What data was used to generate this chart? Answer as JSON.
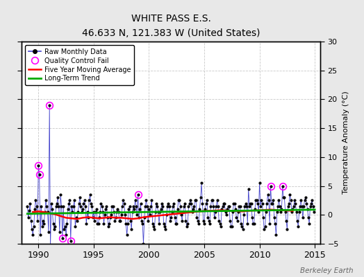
{
  "title": "WHITE PASS E.S.",
  "subtitle": "46.633 N, 121.383 W (United States)",
  "ylabel_right": "Temperature Anomaly (°C)",
  "watermark": "Berkeley Earth",
  "xlim": [
    1988.5,
    2015.5
  ],
  "ylim": [
    -5,
    30
  ],
  "yticks": [
    -5,
    0,
    5,
    10,
    15,
    20,
    25,
    30
  ],
  "xticks": [
    1990,
    1995,
    2000,
    2005,
    2010,
    2015
  ],
  "bg_color": "#e8e8e8",
  "plot_bg": "#ffffff",
  "raw_line_color": "#4444cc",
  "raw_marker_color": "#000000",
  "qc_fail_color": "#ff00ff",
  "moving_avg_color": "#ff0000",
  "trend_color": "#00aa00",
  "raw_data": [
    [
      1989.0,
      1.5
    ],
    [
      1989.083,
      -0.5
    ],
    [
      1989.167,
      0.8
    ],
    [
      1989.25,
      2.0
    ],
    [
      1989.333,
      -1.0
    ],
    [
      1989.417,
      -2.5
    ],
    [
      1989.5,
      -3.5
    ],
    [
      1989.583,
      -2.0
    ],
    [
      1989.667,
      1.0
    ],
    [
      1989.75,
      2.5
    ],
    [
      1989.833,
      1.5
    ],
    [
      1989.917,
      -1.0
    ],
    [
      1990.0,
      8.5
    ],
    [
      1990.083,
      7.0
    ],
    [
      1990.167,
      -3.5
    ],
    [
      1990.25,
      1.5
    ],
    [
      1990.333,
      -2.0
    ],
    [
      1990.417,
      -1.0
    ],
    [
      1990.5,
      -1.5
    ],
    [
      1990.583,
      0.5
    ],
    [
      1990.667,
      2.5
    ],
    [
      1990.75,
      1.5
    ],
    [
      1990.833,
      0.5
    ],
    [
      1990.917,
      -3.0
    ],
    [
      1991.0,
      19.0
    ],
    [
      1991.083,
      -5.5
    ],
    [
      1991.167,
      2.0
    ],
    [
      1991.25,
      1.0
    ],
    [
      1991.333,
      -1.5
    ],
    [
      1991.417,
      -2.5
    ],
    [
      1991.5,
      -2.0
    ],
    [
      1991.583,
      1.5
    ],
    [
      1991.667,
      2.0
    ],
    [
      1991.75,
      3.0
    ],
    [
      1991.833,
      1.5
    ],
    [
      1991.917,
      -3.0
    ],
    [
      1992.0,
      3.5
    ],
    [
      1992.083,
      1.5
    ],
    [
      1992.167,
      -4.0
    ],
    [
      1992.25,
      1.5
    ],
    [
      1992.333,
      -2.5
    ],
    [
      1992.417,
      -2.0
    ],
    [
      1992.5,
      -3.5
    ],
    [
      1992.583,
      -1.5
    ],
    [
      1992.667,
      1.0
    ],
    [
      1992.75,
      2.0
    ],
    [
      1992.833,
      2.5
    ],
    [
      1992.917,
      -4.5
    ],
    [
      1993.0,
      1.5
    ],
    [
      1993.083,
      0.5
    ],
    [
      1993.167,
      1.5
    ],
    [
      1993.25,
      2.5
    ],
    [
      1993.333,
      -2.0
    ],
    [
      1993.417,
      -0.5
    ],
    [
      1993.5,
      -1.0
    ],
    [
      1993.583,
      0.5
    ],
    [
      1993.667,
      2.0
    ],
    [
      1993.75,
      3.0
    ],
    [
      1993.833,
      1.5
    ],
    [
      1993.917,
      0.5
    ],
    [
      1994.0,
      1.0
    ],
    [
      1994.083,
      2.0
    ],
    [
      1994.167,
      2.5
    ],
    [
      1994.25,
      1.5
    ],
    [
      1994.333,
      -1.5
    ],
    [
      1994.417,
      0.5
    ],
    [
      1994.5,
      -0.5
    ],
    [
      1994.583,
      2.5
    ],
    [
      1994.667,
      3.5
    ],
    [
      1994.75,
      2.0
    ],
    [
      1994.833,
      1.5
    ],
    [
      1994.917,
      -0.5
    ],
    [
      1995.0,
      0.5
    ],
    [
      1995.083,
      -1.0
    ],
    [
      1995.167,
      0.5
    ],
    [
      1995.25,
      1.0
    ],
    [
      1995.333,
      -1.5
    ],
    [
      1995.417,
      -1.5
    ],
    [
      1995.5,
      -0.5
    ],
    [
      1995.583,
      0.5
    ],
    [
      1995.667,
      2.0
    ],
    [
      1995.75,
      1.5
    ],
    [
      1995.833,
      0.5
    ],
    [
      1995.917,
      -1.5
    ],
    [
      1996.0,
      0.0
    ],
    [
      1996.083,
      1.0
    ],
    [
      1996.167,
      1.5
    ],
    [
      1996.25,
      -0.5
    ],
    [
      1996.333,
      -2.0
    ],
    [
      1996.417,
      -1.5
    ],
    [
      1996.5,
      -0.5
    ],
    [
      1996.583,
      0.0
    ],
    [
      1996.667,
      1.5
    ],
    [
      1996.75,
      1.5
    ],
    [
      1996.833,
      0.5
    ],
    [
      1996.917,
      -1.0
    ],
    [
      1997.0,
      -0.5
    ],
    [
      1997.083,
      0.5
    ],
    [
      1997.167,
      1.0
    ],
    [
      1997.25,
      0.5
    ],
    [
      1997.333,
      -1.0
    ],
    [
      1997.417,
      -1.0
    ],
    [
      1997.5,
      0.0
    ],
    [
      1997.583,
      1.5
    ],
    [
      1997.667,
      2.5
    ],
    [
      1997.75,
      2.0
    ],
    [
      1997.833,
      0.0
    ],
    [
      1997.917,
      -1.5
    ],
    [
      1998.0,
      -3.5
    ],
    [
      1998.083,
      -1.5
    ],
    [
      1998.167,
      1.0
    ],
    [
      1998.25,
      1.5
    ],
    [
      1998.333,
      -1.0
    ],
    [
      1998.417,
      -2.5
    ],
    [
      1998.5,
      0.5
    ],
    [
      1998.583,
      1.5
    ],
    [
      1998.667,
      1.0
    ],
    [
      1998.75,
      2.5
    ],
    [
      1998.833,
      1.5
    ],
    [
      1998.917,
      0.0
    ],
    [
      1999.0,
      3.5
    ],
    [
      1999.083,
      -0.5
    ],
    [
      1999.167,
      1.0
    ],
    [
      1999.25,
      2.0
    ],
    [
      1999.333,
      -1.0
    ],
    [
      1999.417,
      -1.5
    ],
    [
      1999.5,
      -5.0
    ],
    [
      1999.583,
      -0.5
    ],
    [
      1999.667,
      1.5
    ],
    [
      1999.75,
      2.5
    ],
    [
      1999.833,
      1.5
    ],
    [
      1999.917,
      -1.0
    ],
    [
      2000.0,
      1.0
    ],
    [
      2000.083,
      0.0
    ],
    [
      2000.167,
      1.5
    ],
    [
      2000.25,
      2.5
    ],
    [
      2000.333,
      -1.5
    ],
    [
      2000.417,
      -2.0
    ],
    [
      2000.5,
      -2.5
    ],
    [
      2000.583,
      0.5
    ],
    [
      2000.667,
      2.0
    ],
    [
      2000.75,
      1.5
    ],
    [
      2000.833,
      0.5
    ],
    [
      2000.917,
      -1.5
    ],
    [
      2001.0,
      0.5
    ],
    [
      2001.083,
      1.0
    ],
    [
      2001.167,
      2.0
    ],
    [
      2001.25,
      1.5
    ],
    [
      2001.333,
      -1.5
    ],
    [
      2001.417,
      -2.0
    ],
    [
      2001.5,
      -2.5
    ],
    [
      2001.583,
      0.0
    ],
    [
      2001.667,
      1.5
    ],
    [
      2001.75,
      2.0
    ],
    [
      2001.833,
      1.5
    ],
    [
      2001.917,
      -1.0
    ],
    [
      2002.0,
      -0.5
    ],
    [
      2002.083,
      0.5
    ],
    [
      2002.167,
      1.5
    ],
    [
      2002.25,
      2.0
    ],
    [
      2002.333,
      -0.5
    ],
    [
      2002.417,
      -1.5
    ],
    [
      2002.5,
      -1.5
    ],
    [
      2002.583,
      1.0
    ],
    [
      2002.667,
      2.5
    ],
    [
      2002.75,
      2.5
    ],
    [
      2002.833,
      1.5
    ],
    [
      2002.917,
      0.0
    ],
    [
      2003.0,
      -1.0
    ],
    [
      2003.083,
      0.5
    ],
    [
      2003.167,
      1.5
    ],
    [
      2003.25,
      2.0
    ],
    [
      2003.333,
      -1.0
    ],
    [
      2003.417,
      -2.0
    ],
    [
      2003.5,
      -1.5
    ],
    [
      2003.583,
      1.5
    ],
    [
      2003.667,
      2.0
    ],
    [
      2003.75,
      2.5
    ],
    [
      2003.833,
      2.0
    ],
    [
      2003.917,
      0.5
    ],
    [
      2004.0,
      1.0
    ],
    [
      2004.083,
      1.5
    ],
    [
      2004.167,
      2.5
    ],
    [
      2004.25,
      2.5
    ],
    [
      2004.333,
      -0.5
    ],
    [
      2004.417,
      -1.0
    ],
    [
      2004.5,
      -1.5
    ],
    [
      2004.583,
      1.0
    ],
    [
      2004.667,
      3.0
    ],
    [
      2004.75,
      5.5
    ],
    [
      2004.833,
      2.0
    ],
    [
      2004.917,
      -1.0
    ],
    [
      2005.0,
      -1.5
    ],
    [
      2005.083,
      1.0
    ],
    [
      2005.167,
      2.0
    ],
    [
      2005.25,
      2.5
    ],
    [
      2005.333,
      -0.5
    ],
    [
      2005.417,
      -1.0
    ],
    [
      2005.5,
      -1.5
    ],
    [
      2005.583,
      1.5
    ],
    [
      2005.667,
      2.5
    ],
    [
      2005.75,
      2.5
    ],
    [
      2005.833,
      1.5
    ],
    [
      2005.917,
      -0.5
    ],
    [
      2006.0,
      0.5
    ],
    [
      2006.083,
      1.5
    ],
    [
      2006.167,
      2.5
    ],
    [
      2006.25,
      1.5
    ],
    [
      2006.333,
      -1.0
    ],
    [
      2006.417,
      -1.5
    ],
    [
      2006.5,
      -2.0
    ],
    [
      2006.583,
      1.0
    ],
    [
      2006.667,
      1.5
    ],
    [
      2006.75,
      2.0
    ],
    [
      2006.833,
      2.0
    ],
    [
      2006.917,
      0.5
    ],
    [
      2007.0,
      0.0
    ],
    [
      2007.083,
      1.0
    ],
    [
      2007.167,
      1.5
    ],
    [
      2007.25,
      1.5
    ],
    [
      2007.333,
      -1.0
    ],
    [
      2007.417,
      -2.0
    ],
    [
      2007.5,
      -2.0
    ],
    [
      2007.583,
      0.5
    ],
    [
      2007.667,
      2.0
    ],
    [
      2007.75,
      2.0
    ],
    [
      2007.833,
      1.0
    ],
    [
      2007.917,
      -0.5
    ],
    [
      2008.0,
      -1.0
    ],
    [
      2008.083,
      0.5
    ],
    [
      2008.167,
      1.5
    ],
    [
      2008.25,
      1.5
    ],
    [
      2008.333,
      -1.5
    ],
    [
      2008.417,
      -2.0
    ],
    [
      2008.5,
      -2.5
    ],
    [
      2008.583,
      0.0
    ],
    [
      2008.667,
      1.5
    ],
    [
      2008.75,
      2.0
    ],
    [
      2008.833,
      1.5
    ],
    [
      2008.917,
      -1.5
    ],
    [
      2009.0,
      4.5
    ],
    [
      2009.083,
      1.5
    ],
    [
      2009.167,
      2.0
    ],
    [
      2009.25,
      2.0
    ],
    [
      2009.333,
      -0.5
    ],
    [
      2009.417,
      -1.5
    ],
    [
      2009.5,
      -1.5
    ],
    [
      2009.583,
      1.0
    ],
    [
      2009.667,
      2.5
    ],
    [
      2009.75,
      2.5
    ],
    [
      2009.833,
      2.0
    ],
    [
      2009.917,
      0.5
    ],
    [
      2010.0,
      5.5
    ],
    [
      2010.083,
      1.5
    ],
    [
      2010.167,
      2.5
    ],
    [
      2010.25,
      2.0
    ],
    [
      2010.333,
      -0.5
    ],
    [
      2010.417,
      -2.5
    ],
    [
      2010.5,
      -2.0
    ],
    [
      2010.583,
      0.5
    ],
    [
      2010.667,
      2.0
    ],
    [
      2010.75,
      3.5
    ],
    [
      2010.833,
      2.5
    ],
    [
      2010.917,
      -1.5
    ],
    [
      2011.0,
      5.0
    ],
    [
      2011.083,
      2.0
    ],
    [
      2011.167,
      2.0
    ],
    [
      2011.25,
      2.5
    ],
    [
      2011.333,
      -0.5
    ],
    [
      2011.417,
      -1.5
    ],
    [
      2011.5,
      -3.5
    ],
    [
      2011.583,
      0.5
    ],
    [
      2011.667,
      1.5
    ],
    [
      2011.75,
      2.5
    ],
    [
      2011.833,
      1.5
    ],
    [
      2011.917,
      0.5
    ],
    [
      2012.0,
      1.0
    ],
    [
      2012.083,
      5.0
    ],
    [
      2012.167,
      3.0
    ],
    [
      2012.25,
      3.0
    ],
    [
      2012.333,
      0.5
    ],
    [
      2012.417,
      -1.0
    ],
    [
      2012.5,
      -2.5
    ],
    [
      2012.583,
      1.5
    ],
    [
      2012.667,
      2.0
    ],
    [
      2012.75,
      3.5
    ],
    [
      2012.833,
      2.5
    ],
    [
      2012.917,
      0.5
    ],
    [
      2013.0,
      1.0
    ],
    [
      2013.083,
      1.5
    ],
    [
      2013.167,
      2.5
    ],
    [
      2013.25,
      2.0
    ],
    [
      2013.333,
      0.5
    ],
    [
      2013.417,
      -1.0
    ],
    [
      2013.5,
      -2.0
    ],
    [
      2013.583,
      0.5
    ],
    [
      2013.667,
      1.5
    ],
    [
      2013.75,
      2.5
    ],
    [
      2013.833,
      1.5
    ],
    [
      2013.917,
      -0.5
    ],
    [
      2014.0,
      1.5
    ],
    [
      2014.083,
      2.5
    ],
    [
      2014.167,
      3.0
    ],
    [
      2014.25,
      2.0
    ],
    [
      2014.333,
      1.0
    ],
    [
      2014.417,
      -0.5
    ],
    [
      2014.5,
      -1.5
    ],
    [
      2014.583,
      1.5
    ],
    [
      2014.667,
      2.0
    ],
    [
      2014.75,
      2.5
    ],
    [
      2014.833,
      1.5
    ],
    [
      2014.917,
      0.5
    ]
  ],
  "qc_fail_points": [
    [
      1990.0,
      8.5
    ],
    [
      1990.083,
      7.0
    ],
    [
      1991.0,
      19.0
    ],
    [
      1992.167,
      -4.0
    ],
    [
      1992.917,
      -4.5
    ],
    [
      1999.0,
      3.5
    ],
    [
      2011.0,
      5.0
    ],
    [
      2012.083,
      5.0
    ]
  ],
  "moving_avg": [
    [
      1989.5,
      0.5
    ],
    [
      1990.0,
      0.6
    ],
    [
      1990.5,
      0.5
    ],
    [
      1991.0,
      0.3
    ],
    [
      1991.5,
      0.1
    ],
    [
      1992.0,
      -0.2
    ],
    [
      1992.5,
      -0.5
    ],
    [
      1993.0,
      -0.6
    ],
    [
      1993.5,
      -0.7
    ],
    [
      1994.0,
      -0.5
    ],
    [
      1994.5,
      -0.4
    ],
    [
      1995.0,
      -0.5
    ],
    [
      1995.5,
      -0.6
    ],
    [
      1996.0,
      -0.5
    ],
    [
      1996.5,
      -0.4
    ],
    [
      1997.0,
      -0.5
    ],
    [
      1997.5,
      -0.5
    ],
    [
      1998.0,
      -0.6
    ],
    [
      1998.5,
      -0.7
    ],
    [
      1999.0,
      -0.6
    ],
    [
      1999.5,
      -0.4
    ],
    [
      2000.0,
      -0.3
    ],
    [
      2000.5,
      -0.2
    ],
    [
      2001.0,
      -0.1
    ],
    [
      2001.5,
      0.0
    ],
    [
      2002.0,
      0.1
    ],
    [
      2002.5,
      0.2
    ],
    [
      2003.0,
      0.3
    ],
    [
      2003.5,
      0.4
    ],
    [
      2004.0,
      0.5
    ],
    [
      2004.5,
      0.6
    ],
    [
      2005.0,
      0.65
    ],
    [
      2005.5,
      0.7
    ],
    [
      2006.0,
      0.75
    ],
    [
      2006.5,
      0.8
    ],
    [
      2007.0,
      0.75
    ],
    [
      2007.5,
      0.7
    ],
    [
      2008.0,
      0.65
    ],
    [
      2008.5,
      0.6
    ],
    [
      2009.0,
      0.7
    ],
    [
      2009.5,
      0.75
    ],
    [
      2010.0,
      0.8
    ],
    [
      2010.5,
      0.85
    ],
    [
      2011.0,
      0.9
    ],
    [
      2011.5,
      0.85
    ],
    [
      2012.0,
      0.8
    ],
    [
      2012.5,
      0.75
    ],
    [
      2013.0,
      0.7
    ]
  ],
  "trend_x": [
    1989.0,
    2015.0
  ],
  "trend_y": [
    0.2,
    0.9
  ]
}
